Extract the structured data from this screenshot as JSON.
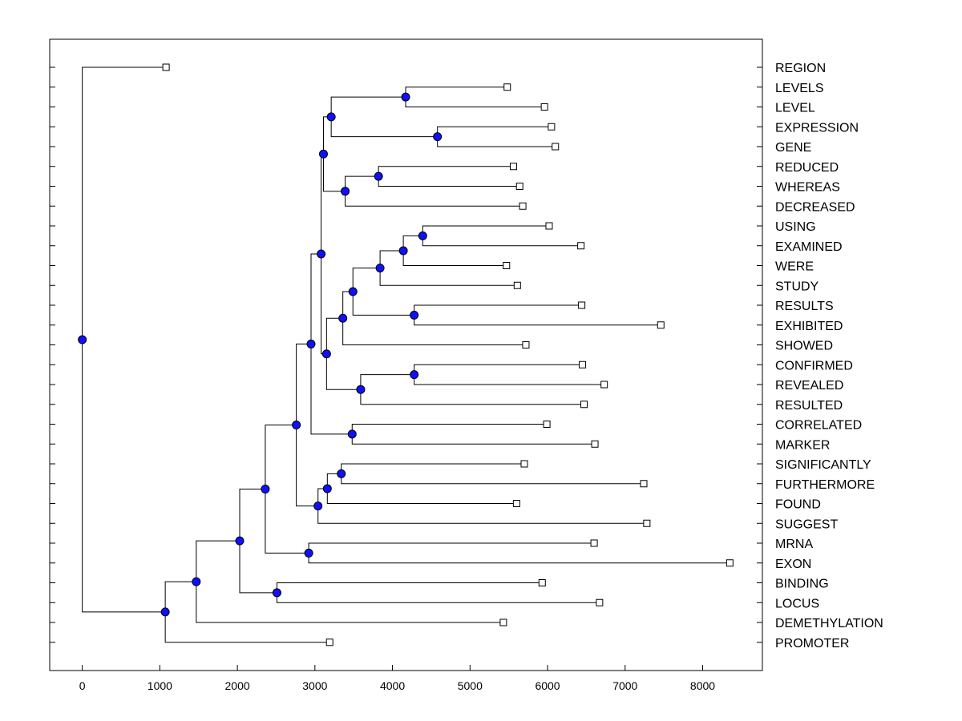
{
  "chart_data": {
    "type": "dendrogram",
    "title": "",
    "xlabel": "",
    "ylabel": "",
    "xlim": [
      -420,
      8770
    ],
    "xticks": [
      0,
      1000,
      2000,
      3000,
      4000,
      5000,
      6000,
      7000,
      8000
    ],
    "xtick_labels": [
      "0",
      "1000",
      "2000",
      "3000",
      "4000",
      "5000",
      "6000",
      "7000",
      "8000"
    ],
    "leaves": [
      {
        "label": "REGION",
        "value": 1080
      },
      {
        "label": "LEVELS",
        "value": 5480
      },
      {
        "label": "LEVEL",
        "value": 5960
      },
      {
        "label": "EXPRESSION",
        "value": 6050
      },
      {
        "label": "GENE",
        "value": 6100
      },
      {
        "label": "REDUCED",
        "value": 5560
      },
      {
        "label": "WHEREAS",
        "value": 5640
      },
      {
        "label": "DECREASED",
        "value": 5680
      },
      {
        "label": "USING",
        "value": 6020
      },
      {
        "label": "EXAMINED",
        "value": 6430
      },
      {
        "label": "WERE",
        "value": 5470
      },
      {
        "label": "STUDY",
        "value": 5610
      },
      {
        "label": "RESULTS",
        "value": 6440
      },
      {
        "label": "EXHIBITED",
        "value": 7460
      },
      {
        "label": "SHOWED",
        "value": 5720
      },
      {
        "label": "CONFIRMED",
        "value": 6450
      },
      {
        "label": "REVEALED",
        "value": 6730
      },
      {
        "label": "RESULTED",
        "value": 6470
      },
      {
        "label": "CORRELATED",
        "value": 5990
      },
      {
        "label": "MARKER",
        "value": 6610
      },
      {
        "label": "SIGNIFICANTLY",
        "value": 5700
      },
      {
        "label": "FURTHERMORE",
        "value": 7240
      },
      {
        "label": "FOUND",
        "value": 5600
      },
      {
        "label": "SUGGEST",
        "value": 7280
      },
      {
        "label": "MRNA",
        "value": 6600
      },
      {
        "label": "EXON",
        "value": 8350
      },
      {
        "label": "BINDING",
        "value": 5930
      },
      {
        "label": "LOCUS",
        "value": 6670
      },
      {
        "label": "DEMETHYLATION",
        "value": 5430
      },
      {
        "label": "PROMOTER",
        "value": 3190
      }
    ],
    "merges": [
      {
        "id": "n1",
        "a": 1,
        "b": 2,
        "value": 4170
      },
      {
        "id": "n2",
        "a": 3,
        "b": 4,
        "value": 4580
      },
      {
        "id": "n3",
        "a": "n1",
        "b": "n2",
        "value": 3210
      },
      {
        "id": "n4",
        "a": 5,
        "b": 6,
        "value": 3820
      },
      {
        "id": "n5",
        "a": "n4",
        "b": 7,
        "value": 3390
      },
      {
        "id": "n6",
        "a": "n3",
        "b": "n5",
        "value": 3110
      },
      {
        "id": "n7",
        "a": 8,
        "b": 9,
        "value": 4390
      },
      {
        "id": "n8",
        "a": "n7",
        "b": 10,
        "value": 4140
      },
      {
        "id": "n9",
        "a": "n8",
        "b": 11,
        "value": 3840
      },
      {
        "id": "n10",
        "a": 12,
        "b": 13,
        "value": 4280
      },
      {
        "id": "n11",
        "a": "n9",
        "b": "n10",
        "value": 3490
      },
      {
        "id": "n12",
        "a": "n11",
        "b": 14,
        "value": 3360
      },
      {
        "id": "n13",
        "a": 15,
        "b": 16,
        "value": 4280
      },
      {
        "id": "n14",
        "a": "n13",
        "b": 17,
        "value": 3590
      },
      {
        "id": "n15",
        "a": "n12",
        "b": "n14",
        "value": 3150
      },
      {
        "id": "n16",
        "a": "n6",
        "b": "n15",
        "value": 3080
      },
      {
        "id": "n17",
        "a": 18,
        "b": 19,
        "value": 3480
      },
      {
        "id": "n18",
        "a": "n16",
        "b": "n17",
        "value": 2950
      },
      {
        "id": "n19",
        "a": 20,
        "b": 21,
        "value": 3340
      },
      {
        "id": "n20",
        "a": "n19",
        "b": 22,
        "value": 3160
      },
      {
        "id": "n21",
        "a": "n20",
        "b": 23,
        "value": 3040
      },
      {
        "id": "n22",
        "a": "n18",
        "b": "n21",
        "value": 2760
      },
      {
        "id": "n23",
        "a": 24,
        "b": 25,
        "value": 2920
      },
      {
        "id": "n24",
        "a": "n22",
        "b": "n23",
        "value": 2360
      },
      {
        "id": "n25",
        "a": 26,
        "b": 27,
        "value": 2510
      },
      {
        "id": "n26",
        "a": "n24",
        "b": "n25",
        "value": 2030
      },
      {
        "id": "n27",
        "a": "n26",
        "b": 28,
        "value": 1470
      },
      {
        "id": "n28",
        "a": "n27",
        "b": 29,
        "value": 1070
      },
      {
        "id": "n29",
        "a": 0,
        "b": "n28",
        "value": 0
      }
    ]
  }
}
